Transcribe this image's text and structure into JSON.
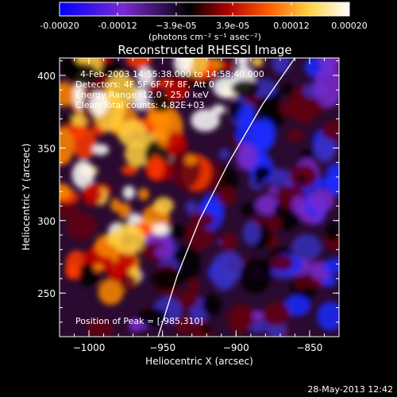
{
  "colorbar": {
    "tick_labels": [
      "-0.00020",
      "-0.00012",
      "−3.9e-05",
      "3.9e-05",
      "0.00012",
      "0.00020"
    ],
    "tick_values": [
      -0.0002,
      -0.00012,
      -3.9e-05,
      3.9e-05,
      0.00012,
      0.0002
    ],
    "range": [
      -0.0002,
      0.0002
    ],
    "unit_label": "(photons cm⁻² s⁻¹ asec⁻²)",
    "colors": [
      "#0000ff",
      "#7a2ad0",
      "#000000",
      "#b00000",
      "#ff5a00",
      "#ffd040",
      "#ffffff"
    ]
  },
  "chart_data": {
    "type": "heatmap",
    "title": "Reconstructed RHESSI Image",
    "xlabel": "Heliocentric X (arcsec)",
    "ylabel": "Heliocentric Y (arcsec)",
    "xlim": [
      -1020,
      -830
    ],
    "ylim": [
      220,
      412
    ],
    "x_ticks": [
      -1000,
      -950,
      -900,
      -850
    ],
    "x_tick_labels": [
      "−1000",
      "−950",
      "−900",
      "−850"
    ],
    "y_ticks": [
      250,
      300,
      350,
      400
    ],
    "y_tick_labels": [
      "250",
      "300",
      "350",
      "400"
    ],
    "limb_curve": [
      [
        -953,
        220
      ],
      [
        -940,
        262
      ],
      [
        -925,
        300
      ],
      [
        -905,
        340
      ],
      [
        -882,
        380
      ],
      [
        -860,
        412
      ]
    ],
    "annotations": {
      "time": "4-Feb-2003 14:55:38.000 to 14:58:40.000",
      "detectors": "Detectors: 4F 5F 6F 7F 8F, Att 0",
      "energy": "Energy Range: 12.0 - 25.0 keV",
      "clean": "Clean    Total counts: 4.82E+03",
      "peak": "Position of Peak = [-985,310]"
    }
  },
  "footer": {
    "timestamp": "28-May-2013 12:42"
  }
}
